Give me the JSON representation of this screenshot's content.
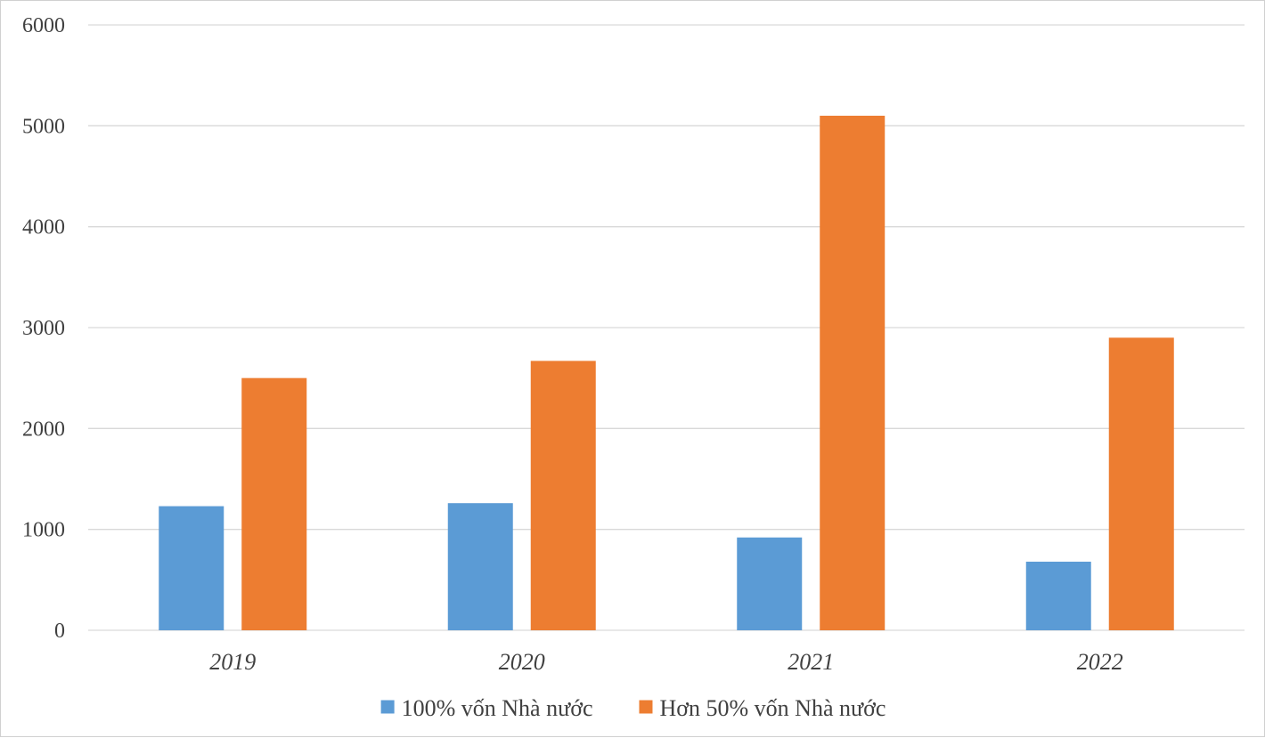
{
  "chart_data": {
    "type": "bar",
    "title": "",
    "xlabel": "",
    "ylabel": "",
    "categories": [
      "2019",
      "2020",
      "2021",
      "2022"
    ],
    "ylim": [
      0,
      6000
    ],
    "yticks": [
      "0",
      "1000",
      "2000",
      "3000",
      "4000",
      "5000",
      "6000"
    ],
    "grid": true,
    "legend_position": "bottom",
    "series": [
      {
        "name": "100% vốn Nhà nước",
        "color": "#5b9bd5",
        "values": [
          1230,
          1260,
          920,
          680
        ]
      },
      {
        "name": "Hơn 50% vốn Nhà nước",
        "color": "#ed7d31",
        "values": [
          2500,
          2670,
          5100,
          2900
        ]
      }
    ]
  }
}
